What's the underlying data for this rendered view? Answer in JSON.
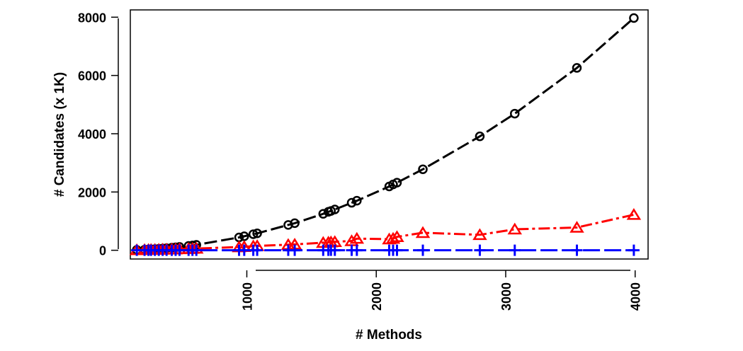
{
  "chart_data": {
    "type": "line",
    "title": "",
    "xlabel": "# Methods",
    "ylabel": "# Candidates (x 1K)",
    "xlim": [
      100,
      4100
    ],
    "ylim": [
      -300,
      8250
    ],
    "x_ticks": [
      1000,
      2000,
      3000,
      4000
    ],
    "y_ticks": [
      0,
      2000,
      4000,
      6000,
      8000
    ],
    "grid": false,
    "legend": "none",
    "series": [
      {
        "color": "#000000",
        "marker": "circle",
        "line_style": "dashed",
        "points": [
          [
            150,
            12
          ],
          [
            210,
            20
          ],
          [
            240,
            28
          ],
          [
            260,
            33
          ],
          [
            290,
            41
          ],
          [
            320,
            50
          ],
          [
            350,
            60
          ],
          [
            380,
            70
          ],
          [
            420,
            88
          ],
          [
            450,
            100
          ],
          [
            480,
            115
          ],
          [
            550,
            150
          ],
          [
            580,
            165
          ],
          [
            610,
            185
          ],
          [
            940,
            440
          ],
          [
            980,
            480
          ],
          [
            1050,
            550
          ],
          [
            1080,
            580
          ],
          [
            1320,
            870
          ],
          [
            1370,
            930
          ],
          [
            1590,
            1250
          ],
          [
            1630,
            1320
          ],
          [
            1650,
            1350
          ],
          [
            1680,
            1400
          ],
          [
            1810,
            1630
          ],
          [
            1850,
            1700
          ],
          [
            2100,
            2190
          ],
          [
            2130,
            2260
          ],
          [
            2160,
            2320
          ],
          [
            2360,
            2780
          ],
          [
            2800,
            3910
          ],
          [
            3070,
            4690
          ],
          [
            3550,
            6260
          ],
          [
            3990,
            7970
          ]
        ]
      },
      {
        "color": "#ff0000",
        "marker": "triangle",
        "line_style": "dash-dot",
        "points": [
          [
            150,
            10
          ],
          [
            210,
            15
          ],
          [
            240,
            18
          ],
          [
            260,
            20
          ],
          [
            290,
            22
          ],
          [
            320,
            25
          ],
          [
            350,
            28
          ],
          [
            380,
            30
          ],
          [
            420,
            35
          ],
          [
            450,
            38
          ],
          [
            480,
            42
          ],
          [
            550,
            50
          ],
          [
            580,
            55
          ],
          [
            610,
            60
          ],
          [
            940,
            110
          ],
          [
            980,
            120
          ],
          [
            1050,
            140
          ],
          [
            1080,
            150
          ],
          [
            1320,
            190
          ],
          [
            1370,
            200
          ],
          [
            1590,
            260
          ],
          [
            1630,
            270
          ],
          [
            1650,
            280
          ],
          [
            1680,
            290
          ],
          [
            1810,
            320
          ],
          [
            1850,
            400
          ],
          [
            2100,
            380
          ],
          [
            2130,
            400
          ],
          [
            2160,
            460
          ],
          [
            2360,
            600
          ],
          [
            2800,
            530
          ],
          [
            3070,
            720
          ],
          [
            3550,
            780
          ],
          [
            3990,
            1220
          ]
        ]
      },
      {
        "color": "#0000ff",
        "marker": "plus",
        "line_style": "long-dash",
        "points": [
          [
            150,
            2
          ],
          [
            210,
            2
          ],
          [
            240,
            2
          ],
          [
            260,
            2
          ],
          [
            290,
            2
          ],
          [
            320,
            2
          ],
          [
            350,
            2
          ],
          [
            380,
            2
          ],
          [
            420,
            2
          ],
          [
            450,
            2
          ],
          [
            480,
            2
          ],
          [
            550,
            2
          ],
          [
            580,
            2
          ],
          [
            610,
            2
          ],
          [
            940,
            2
          ],
          [
            980,
            2
          ],
          [
            1050,
            2
          ],
          [
            1080,
            2
          ],
          [
            1320,
            2
          ],
          [
            1370,
            2
          ],
          [
            1590,
            2
          ],
          [
            1630,
            2
          ],
          [
            1650,
            2
          ],
          [
            1680,
            2
          ],
          [
            1810,
            2
          ],
          [
            1850,
            2
          ],
          [
            2100,
            2
          ],
          [
            2130,
            2
          ],
          [
            2160,
            2
          ],
          [
            2360,
            2
          ],
          [
            2800,
            2
          ],
          [
            3070,
            2
          ],
          [
            3550,
            2
          ],
          [
            3990,
            2
          ]
        ]
      }
    ]
  }
}
